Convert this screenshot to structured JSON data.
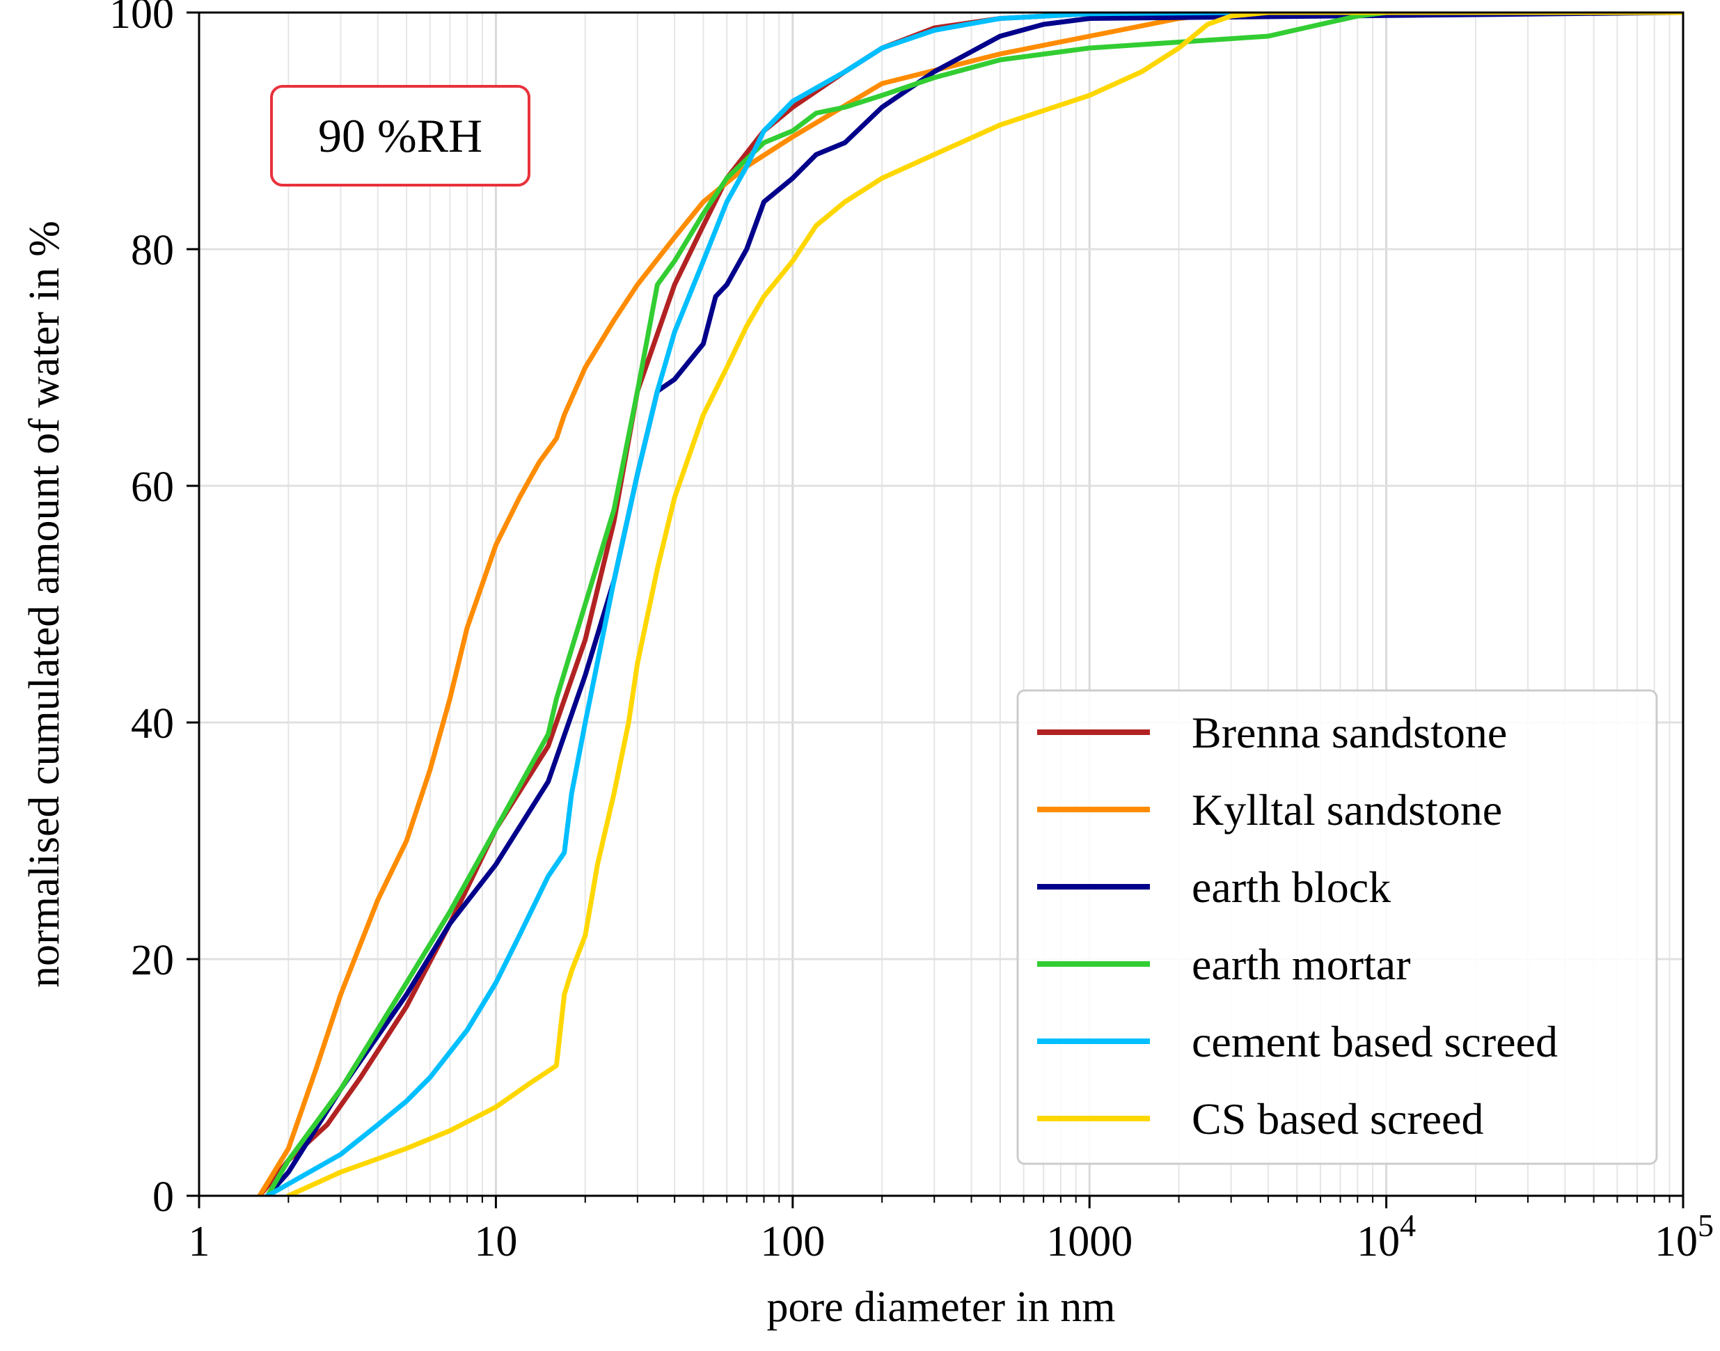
{
  "chart_data": {
    "type": "line",
    "title": "",
    "xlabel": "pore diameter in nm",
    "ylabel": "normalised cumulated amount of water in %",
    "xscale": "log",
    "xlim": [
      1,
      100000
    ],
    "ylim": [
      0,
      100
    ],
    "grid": true,
    "legend_position": "bottom-right",
    "annotation": {
      "text": "90 %RH",
      "border_color": "#e8323c"
    },
    "x_ticks": [
      {
        "value": 1,
        "label": "1"
      },
      {
        "value": 10,
        "label": "10"
      },
      {
        "value": 100,
        "label": "100"
      },
      {
        "value": 1000,
        "label": "1000"
      },
      {
        "value": 10000,
        "label": "10",
        "sup": "4"
      },
      {
        "value": 100000,
        "label": "10",
        "sup": "5"
      }
    ],
    "y_ticks": [
      0,
      20,
      40,
      60,
      80,
      100
    ],
    "series": [
      {
        "name": "Brenna sandstone",
        "color": "#b22222",
        "x": [
          1.6,
          2.0,
          2.7,
          3.5,
          5,
          7,
          10,
          15,
          20,
          25,
          30,
          40,
          50,
          60,
          80,
          100,
          150,
          200,
          300,
          500,
          1000,
          3000,
          100000
        ],
        "y": [
          0,
          3,
          6,
          10,
          16,
          23,
          31,
          38,
          47,
          57,
          68,
          77,
          82,
          86,
          90,
          92,
          95,
          97,
          98.7,
          99.5,
          99.9,
          100,
          100
        ]
      },
      {
        "name": "Kylltal sandstone",
        "color": "#ff8c00",
        "x": [
          1.6,
          2.0,
          2.5,
          3,
          4,
          5,
          6,
          7,
          8,
          10,
          12,
          14,
          16,
          17,
          20,
          25,
          30,
          40,
          50,
          70,
          100,
          200,
          500,
          1000,
          2000,
          3000,
          100000
        ],
        "y": [
          0,
          4,
          11,
          17,
          25,
          30,
          36,
          42,
          48,
          55,
          59,
          62,
          64,
          66,
          70,
          74,
          77,
          81,
          84,
          87,
          89.5,
          94,
          96.5,
          98,
          99.5,
          100,
          100
        ]
      },
      {
        "name": "earth block",
        "color": "#00008b",
        "x": [
          1.7,
          2.0,
          3,
          5,
          7,
          10,
          15,
          16,
          20,
          25,
          30,
          35,
          40,
          50,
          55,
          60,
          70,
          80,
          100,
          120,
          150,
          200,
          300,
          500,
          700,
          1000,
          100000
        ],
        "y": [
          0,
          2,
          9,
          17,
          23,
          28,
          35,
          37,
          44,
          52,
          61,
          68,
          69,
          72,
          76,
          77,
          80,
          84,
          86,
          88,
          89,
          92,
          95,
          98,
          99,
          99.5,
          100
        ]
      },
      {
        "name": "earth mortar",
        "color": "#32cd32",
        "x": [
          1.7,
          2.0,
          3,
          5,
          7,
          10,
          15,
          16,
          20,
          25,
          30,
          35,
          40,
          50,
          60,
          80,
          100,
          120,
          150,
          200,
          300,
          500,
          1000,
          2000,
          4000,
          6000,
          8000,
          10000,
          100000
        ],
        "y": [
          0,
          3,
          9,
          18,
          24,
          31,
          39,
          42,
          50,
          58,
          68,
          77,
          79,
          83,
          86,
          89,
          90,
          91.5,
          92,
          93,
          94.5,
          96,
          97,
          97.5,
          98,
          99,
          99.7,
          100,
          100
        ]
      },
      {
        "name": "cement based screed",
        "color": "#00bfff",
        "x": [
          1.7,
          2.0,
          3,
          4,
          5,
          6,
          8,
          10,
          12,
          15,
          17,
          18,
          20,
          25,
          30,
          35,
          40,
          50,
          60,
          70,
          80,
          100,
          150,
          200,
          300,
          500,
          1000,
          3000,
          100000
        ],
        "y": [
          0,
          1,
          3.5,
          6,
          8,
          10,
          14,
          18,
          22,
          27,
          29,
          34,
          40,
          52,
          61,
          68,
          73,
          79,
          84,
          87,
          90,
          92.5,
          95,
          97,
          98.5,
          99.5,
          99.9,
          100,
          100
        ]
      },
      {
        "name": "CS based screed",
        "color": "#ffd700",
        "x": [
          2.0,
          3,
          5,
          7,
          10,
          13,
          16,
          17,
          18,
          20,
          22,
          25,
          28,
          30,
          35,
          40,
          50,
          60,
          70,
          80,
          100,
          120,
          150,
          200,
          300,
          500,
          1000,
          1500,
          2000,
          2500,
          3000,
          4000,
          100000
        ],
        "y": [
          0,
          2,
          4,
          5.5,
          7.5,
          9.5,
          11,
          17,
          19,
          22,
          28,
          34,
          40,
          45,
          53,
          59,
          66,
          70,
          73.5,
          76,
          79,
          82,
          84,
          86,
          88,
          90.5,
          93,
          95,
          97,
          99,
          99.7,
          100,
          100
        ]
      }
    ]
  }
}
